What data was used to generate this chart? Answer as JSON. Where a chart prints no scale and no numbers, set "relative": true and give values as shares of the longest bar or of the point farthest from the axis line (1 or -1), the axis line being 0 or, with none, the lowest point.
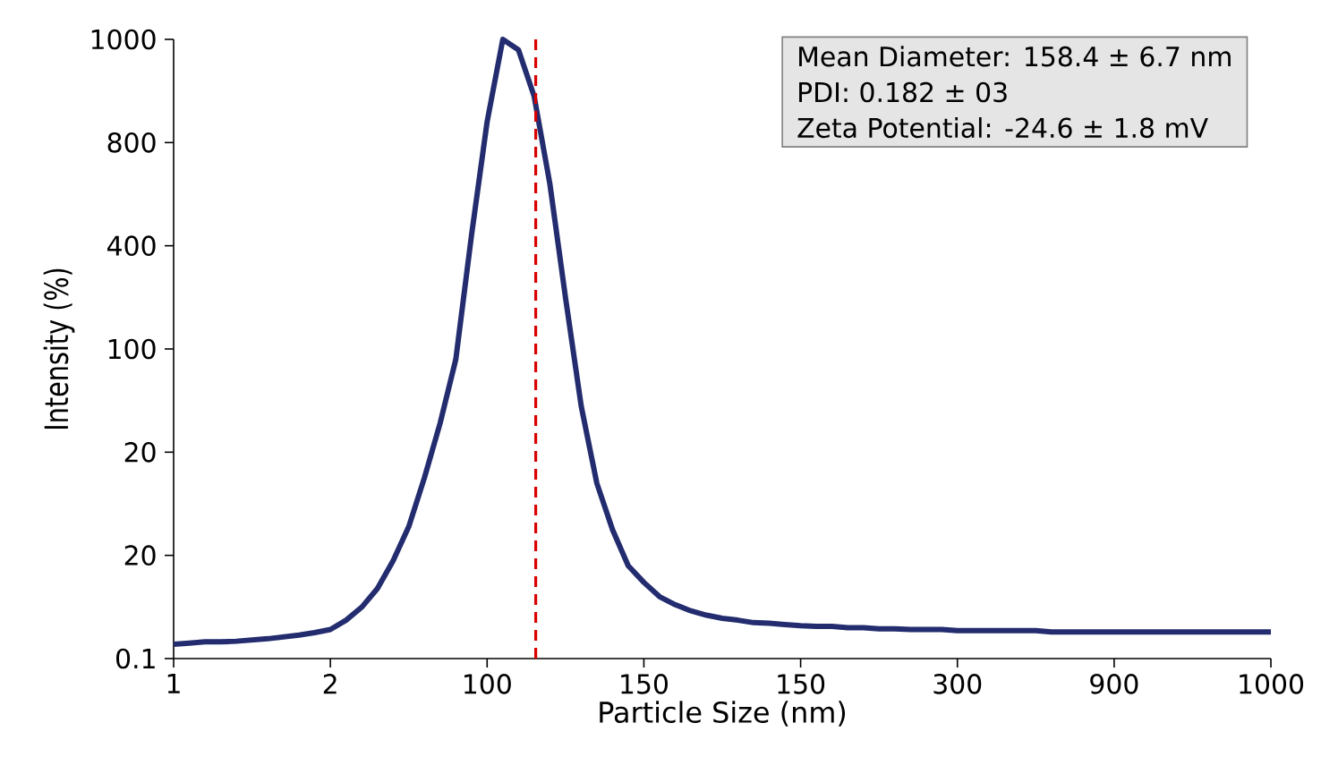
{
  "chart_data": {
    "type": "line",
    "xlabel": "Particle Size (nm)",
    "ylabel": "Intensity (%)",
    "relative": true,
    "annotations": [
      "Mean Diameter: 158.4 ± 6.7 nm",
      "PDI: 0.182 ± 03",
      "Zeta Potential: -24.6 ± 1.8 mV",
      "1000",
      "800",
      "400",
      "100",
      "20",
      "20",
      "0.1"
    ],
    "categories": [
      "1",
      null,
      null,
      null,
      null,
      null,
      null,
      null,
      null,
      null,
      "2",
      null,
      null,
      null,
      null,
      null,
      null,
      null,
      null,
      null,
      "100",
      null,
      null,
      null,
      null,
      null,
      null,
      null,
      null,
      null,
      "150",
      null,
      null,
      null,
      null,
      null,
      null,
      null,
      null,
      null,
      "150",
      null,
      null,
      null,
      null,
      null,
      null,
      null,
      null,
      null,
      "300",
      null,
      null,
      null,
      null,
      null,
      null,
      null,
      null,
      null,
      "900",
      null,
      null,
      null,
      null,
      null,
      null,
      null,
      null,
      null,
      "1000"
    ],
    "series": [
      {
        "color": "#232c6e",
        "values": [
          0.023,
          0.025,
          0.027,
          0.027,
          0.028,
          0.03,
          0.032,
          0.035,
          0.038,
          0.042,
          0.047,
          0.062,
          0.083,
          0.113,
          0.158,
          0.213,
          0.292,
          0.38,
          0.483,
          0.683,
          0.867,
          1,
          0.983,
          0.908,
          0.767,
          0.583,
          0.408,
          0.283,
          0.208,
          0.15,
          0.123,
          0.1,
          0.087,
          0.077,
          0.07,
          0.065,
          0.062,
          0.058,
          0.057,
          0.055,
          0.053,
          0.052,
          0.052,
          0.05,
          0.05,
          0.048,
          0.048,
          0.047,
          0.047,
          0.047,
          0.045,
          0.045,
          0.045,
          0.045,
          0.045,
          0.045,
          0.043,
          0.043,
          0.043,
          0.043,
          0.043,
          0.043,
          0.043,
          0.043,
          0.043,
          0.043,
          0.043,
          0.043,
          0.043,
          0.043,
          0.043
        ]
      }
    ],
    "grid": false,
    "marker": "none",
    "line_style": "solid"
  }
}
